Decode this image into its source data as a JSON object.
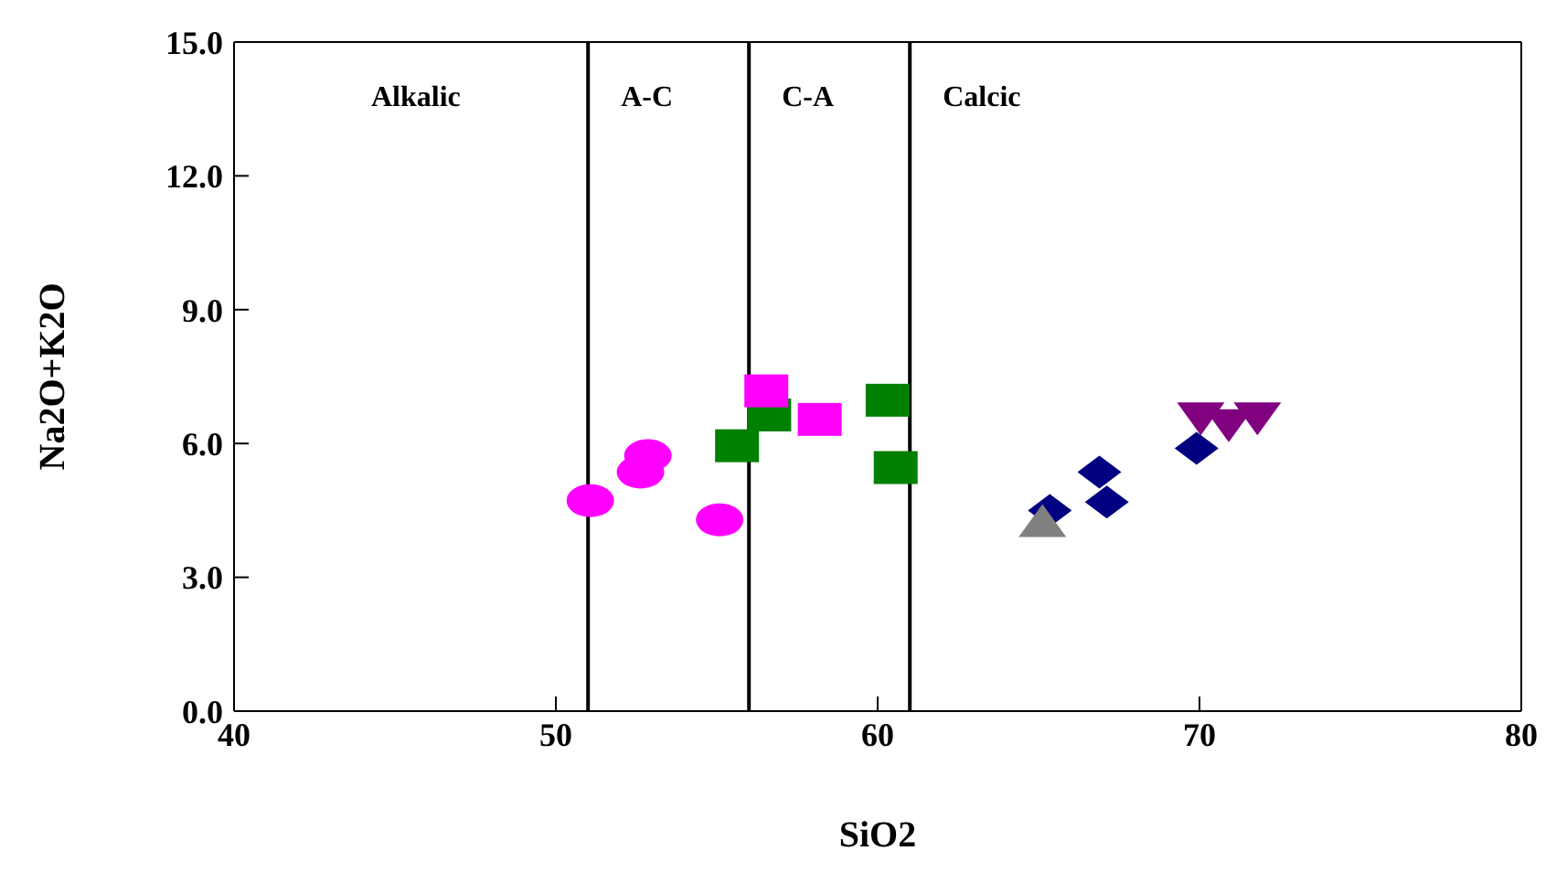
{
  "chart_data": {
    "type": "scatter",
    "xlabel": "SiO2",
    "ylabel": "Na2O+K2O",
    "xlim": [
      40,
      80
    ],
    "xticks": [
      40,
      50,
      60,
      70,
      80
    ],
    "ylim": [
      0,
      15
    ],
    "yticks": [
      {
        "value": 0,
        "label": "0.0"
      },
      {
        "value": 3,
        "label": "3.0"
      },
      {
        "value": 6,
        "label": "6.0"
      },
      {
        "value": 9,
        "label": "9.0"
      },
      {
        "value": 12,
        "label": "12.0"
      },
      {
        "value": 15,
        "label": "15.0"
      }
    ],
    "grid": false,
    "legend": false,
    "ref_lines": [
      {
        "axis": "x",
        "value": 51
      },
      {
        "axis": "x",
        "value": 56
      },
      {
        "axis": "x",
        "value": 61
      }
    ],
    "annotations": [
      "Alkalic",
      "A-C",
      "C-A",
      "Calcic"
    ],
    "series": [
      {
        "color": "#ff00ff",
        "marker": "circle",
        "x": [
          51.07,
          52.63,
          52.86,
          55.09
        ],
        "values": [
          4.72,
          5.36,
          5.73,
          4.29
        ]
      },
      {
        "color": "#008000",
        "marker": "square",
        "x": [
          55.63,
          56.63,
          60.31,
          60.56
        ],
        "values": [
          5.95,
          6.64,
          6.97,
          5.46
        ]
      },
      {
        "color": "#ff00ff",
        "marker": "square",
        "x": [
          56.54,
          58.2
        ],
        "values": [
          7.18,
          6.54
        ]
      },
      {
        "color": "#000080",
        "marker": "diamond",
        "x": [
          65.35,
          66.89,
          67.12,
          69.91
        ],
        "values": [
          4.5,
          5.36,
          4.69,
          5.89
        ]
      },
      {
        "color": "#808080",
        "marker": "triangle",
        "x": [
          65.12
        ],
        "values": [
          4.27
        ]
      },
      {
        "color": "#800080",
        "marker": "triangle",
        "x": [
          70.04,
          70.91,
          71.8
        ],
        "values": [
          6.55,
          6.4,
          6.55
        ]
      }
    ]
  }
}
